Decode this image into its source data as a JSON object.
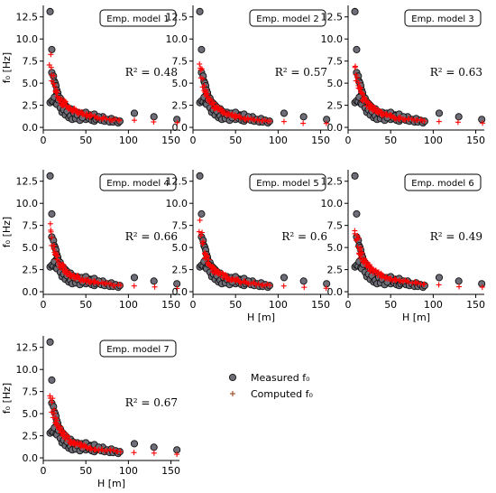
{
  "chart_data": {
    "type": "scatter",
    "xlim": [
      0,
      160
    ],
    "ylim": [
      -0.3,
      13.8
    ],
    "xticks": [
      0,
      50,
      100,
      150
    ],
    "yticks": [
      0.0,
      2.5,
      5.0,
      7.5,
      10.0,
      12.5
    ],
    "xtick_labels": [
      "0",
      "50",
      "100",
      "150"
    ],
    "ytick_labels": [
      "0.0",
      "2.5",
      "5.0",
      "7.5",
      "10.0",
      "12.5"
    ],
    "xlabel": "H [m]",
    "ylabel": "f₀ [Hz]",
    "legend": {
      "measured": "Measured f₀",
      "computed": "Computed f₀",
      "measured_color": "#6e6e78",
      "computed_color": "#ff0000",
      "computed_outline_color": "#a0522d"
    },
    "measured": {
      "x": [
        8,
        10,
        10,
        12,
        13,
        14,
        15,
        15,
        16,
        17,
        18,
        19,
        20,
        20,
        22,
        23,
        24,
        25,
        25,
        26,
        27,
        28,
        30,
        30,
        32,
        33,
        35,
        36,
        38,
        40,
        40,
        42,
        44,
        45,
        46,
        48,
        50,
        50,
        52,
        54,
        55,
        57,
        60,
        60,
        62,
        65,
        68,
        70,
        72,
        75,
        78,
        80,
        82,
        85,
        88,
        90,
        8,
        10,
        12,
        13,
        15,
        16,
        18,
        20,
        22,
        24,
        26,
        28,
        30,
        32,
        34,
        36,
        38,
        40,
        43,
        46,
        50,
        55,
        60,
        65,
        107,
        130,
        157
      ],
      "y": [
        13.1,
        8.8,
        6.2,
        5.8,
        5.2,
        5.0,
        4.7,
        3.6,
        4.2,
        3.9,
        3.5,
        3.1,
        3.3,
        2.6,
        2.9,
        2.4,
        2.7,
        2.2,
        1.8,
        2.5,
        2.0,
        2.3,
        1.9,
        1.5,
        2.1,
        1.6,
        1.8,
        1.3,
        1.5,
        1.7,
        1.2,
        1.4,
        1.1,
        1.6,
        1.0,
        1.3,
        1.5,
        0.9,
        1.2,
        1.0,
        1.4,
        0.8,
        1.1,
        0.7,
        0.9,
        1.0,
        0.8,
        1.2,
        0.7,
        0.9,
        0.6,
        1.0,
        0.6,
        0.8,
        0.5,
        0.7,
        2.8,
        3.0,
        2.9,
        3.4,
        2.7,
        2.6,
        3.1,
        2.2,
        1.7,
        2.0,
        1.4,
        1.8,
        1.1,
        1.3,
        0.9,
        1.6,
        1.0,
        1.4,
        0.8,
        1.1,
        1.7,
        1.3,
        1.5,
        1.2,
        1.6,
        1.2,
        0.9
      ]
    },
    "panels": [
      {
        "title": "Emp. model 1",
        "r2": "R² = 0.48",
        "k": 48,
        "p": 0.9,
        "show_x_ticks": true,
        "show_xlabel": false,
        "show_y_ticks": true,
        "show_ylabel": true
      },
      {
        "title": "Emp. model 2",
        "r2": "R² = 0.57",
        "k": 58,
        "p": 0.98,
        "show_x_ticks": true,
        "show_xlabel": false,
        "show_y_ticks": true,
        "show_ylabel": false
      },
      {
        "title": "Emp. model 3",
        "r2": "R² = 0.63",
        "k": 52,
        "p": 0.95,
        "show_x_ticks": true,
        "show_xlabel": false,
        "show_y_ticks": true,
        "show_ylabel": false
      },
      {
        "title": "Emp. model 4",
        "r2": "R² = 0.66",
        "k": 55,
        "p": 0.96,
        "show_x_ticks": true,
        "show_xlabel": false,
        "show_y_ticks": true,
        "show_ylabel": true
      },
      {
        "title": "Emp. model 5",
        "r2": "R² = 0.6",
        "k": 53,
        "p": 0.95,
        "show_x_ticks": true,
        "show_xlabel": true,
        "show_y_ticks": true,
        "show_ylabel": false
      },
      {
        "title": "Emp. model 6",
        "r2": "R² = 0.49",
        "k": 47,
        "p": 0.88,
        "show_x_ticks": true,
        "show_xlabel": true,
        "show_y_ticks": true,
        "show_ylabel": false
      },
      {
        "title": "Emp. model 7",
        "r2": "R² = 0.67",
        "k": 56,
        "p": 0.97,
        "show_x_ticks": true,
        "show_xlabel": true,
        "show_y_ticks": true,
        "show_ylabel": true
      }
    ]
  }
}
